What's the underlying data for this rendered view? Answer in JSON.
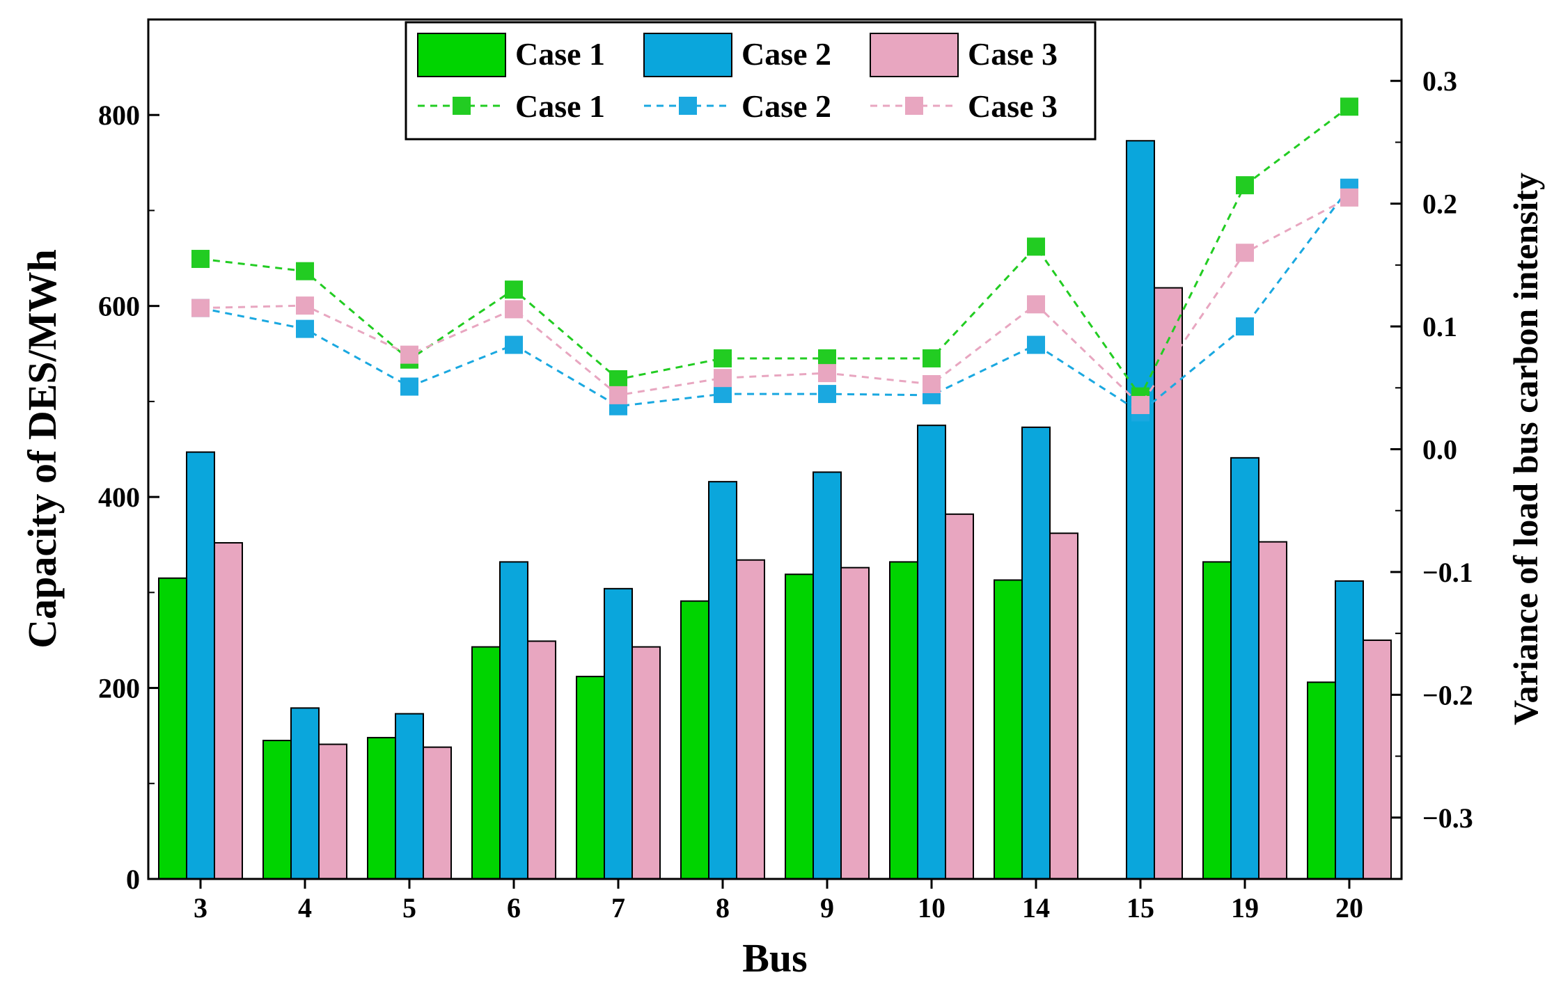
{
  "chart_data": {
    "type": "bar+line",
    "title": "",
    "xlabel": "Bus",
    "ylabel_left": "Capacity of DES/MWh",
    "ylabel_right": "Variance of load bus carbon intensity",
    "categories": [
      "3",
      "4",
      "5",
      "6",
      "7",
      "8",
      "9",
      "10",
      "14",
      "15",
      "19",
      "20"
    ],
    "ylim_left": [
      0,
      900
    ],
    "ylim_right": [
      -0.35,
      0.35
    ],
    "yticks_left": [
      0,
      200,
      400,
      600,
      800
    ],
    "yticks_right": [
      -0.3,
      -0.2,
      -0.1,
      0.0,
      0.1,
      0.2,
      0.3
    ],
    "ytick_labels_left": [
      "0",
      "200",
      "400",
      "600",
      "800"
    ],
    "ytick_labels_right": [
      "−0.3",
      "−0.2",
      "−0.1",
      "0.0",
      "0.1",
      "0.2",
      "0.3"
    ],
    "bar_series": [
      {
        "name": "Case 1",
        "color": "#00d400",
        "values": [
          315,
          145,
          148,
          243,
          212,
          291,
          319,
          332,
          313,
          0,
          332,
          206
        ]
      },
      {
        "name": "Case 2",
        "color": "#0aa6dc",
        "values": [
          447,
          179,
          173,
          332,
          304,
          416,
          426,
          475,
          473,
          773,
          441,
          312
        ]
      },
      {
        "name": "Case 3",
        "color": "#e8a6c0",
        "values": [
          352,
          141,
          138,
          249,
          243,
          334,
          326,
          382,
          362,
          619,
          353,
          250
        ]
      }
    ],
    "line_series": [
      {
        "name": "Case 1",
        "color": "#22cc22",
        "values": [
          0.155,
          0.145,
          0.073,
          0.13,
          0.057,
          0.074,
          0.074,
          0.074,
          0.165,
          0.043,
          0.215,
          0.279
        ]
      },
      {
        "name": "Case 2",
        "color": "#1aa8e0",
        "values": [
          0.115,
          0.098,
          0.051,
          0.085,
          0.035,
          0.045,
          0.045,
          0.044,
          0.085,
          0.03,
          0.1,
          0.213
        ]
      },
      {
        "name": "Case 3",
        "color": "#e8a6c0",
        "values": [
          0.115,
          0.117,
          0.077,
          0.114,
          0.044,
          0.058,
          0.062,
          0.053,
          0.118,
          0.036,
          0.16,
          0.205
        ]
      }
    ],
    "legend_position": "top-center",
    "grid": false
  }
}
